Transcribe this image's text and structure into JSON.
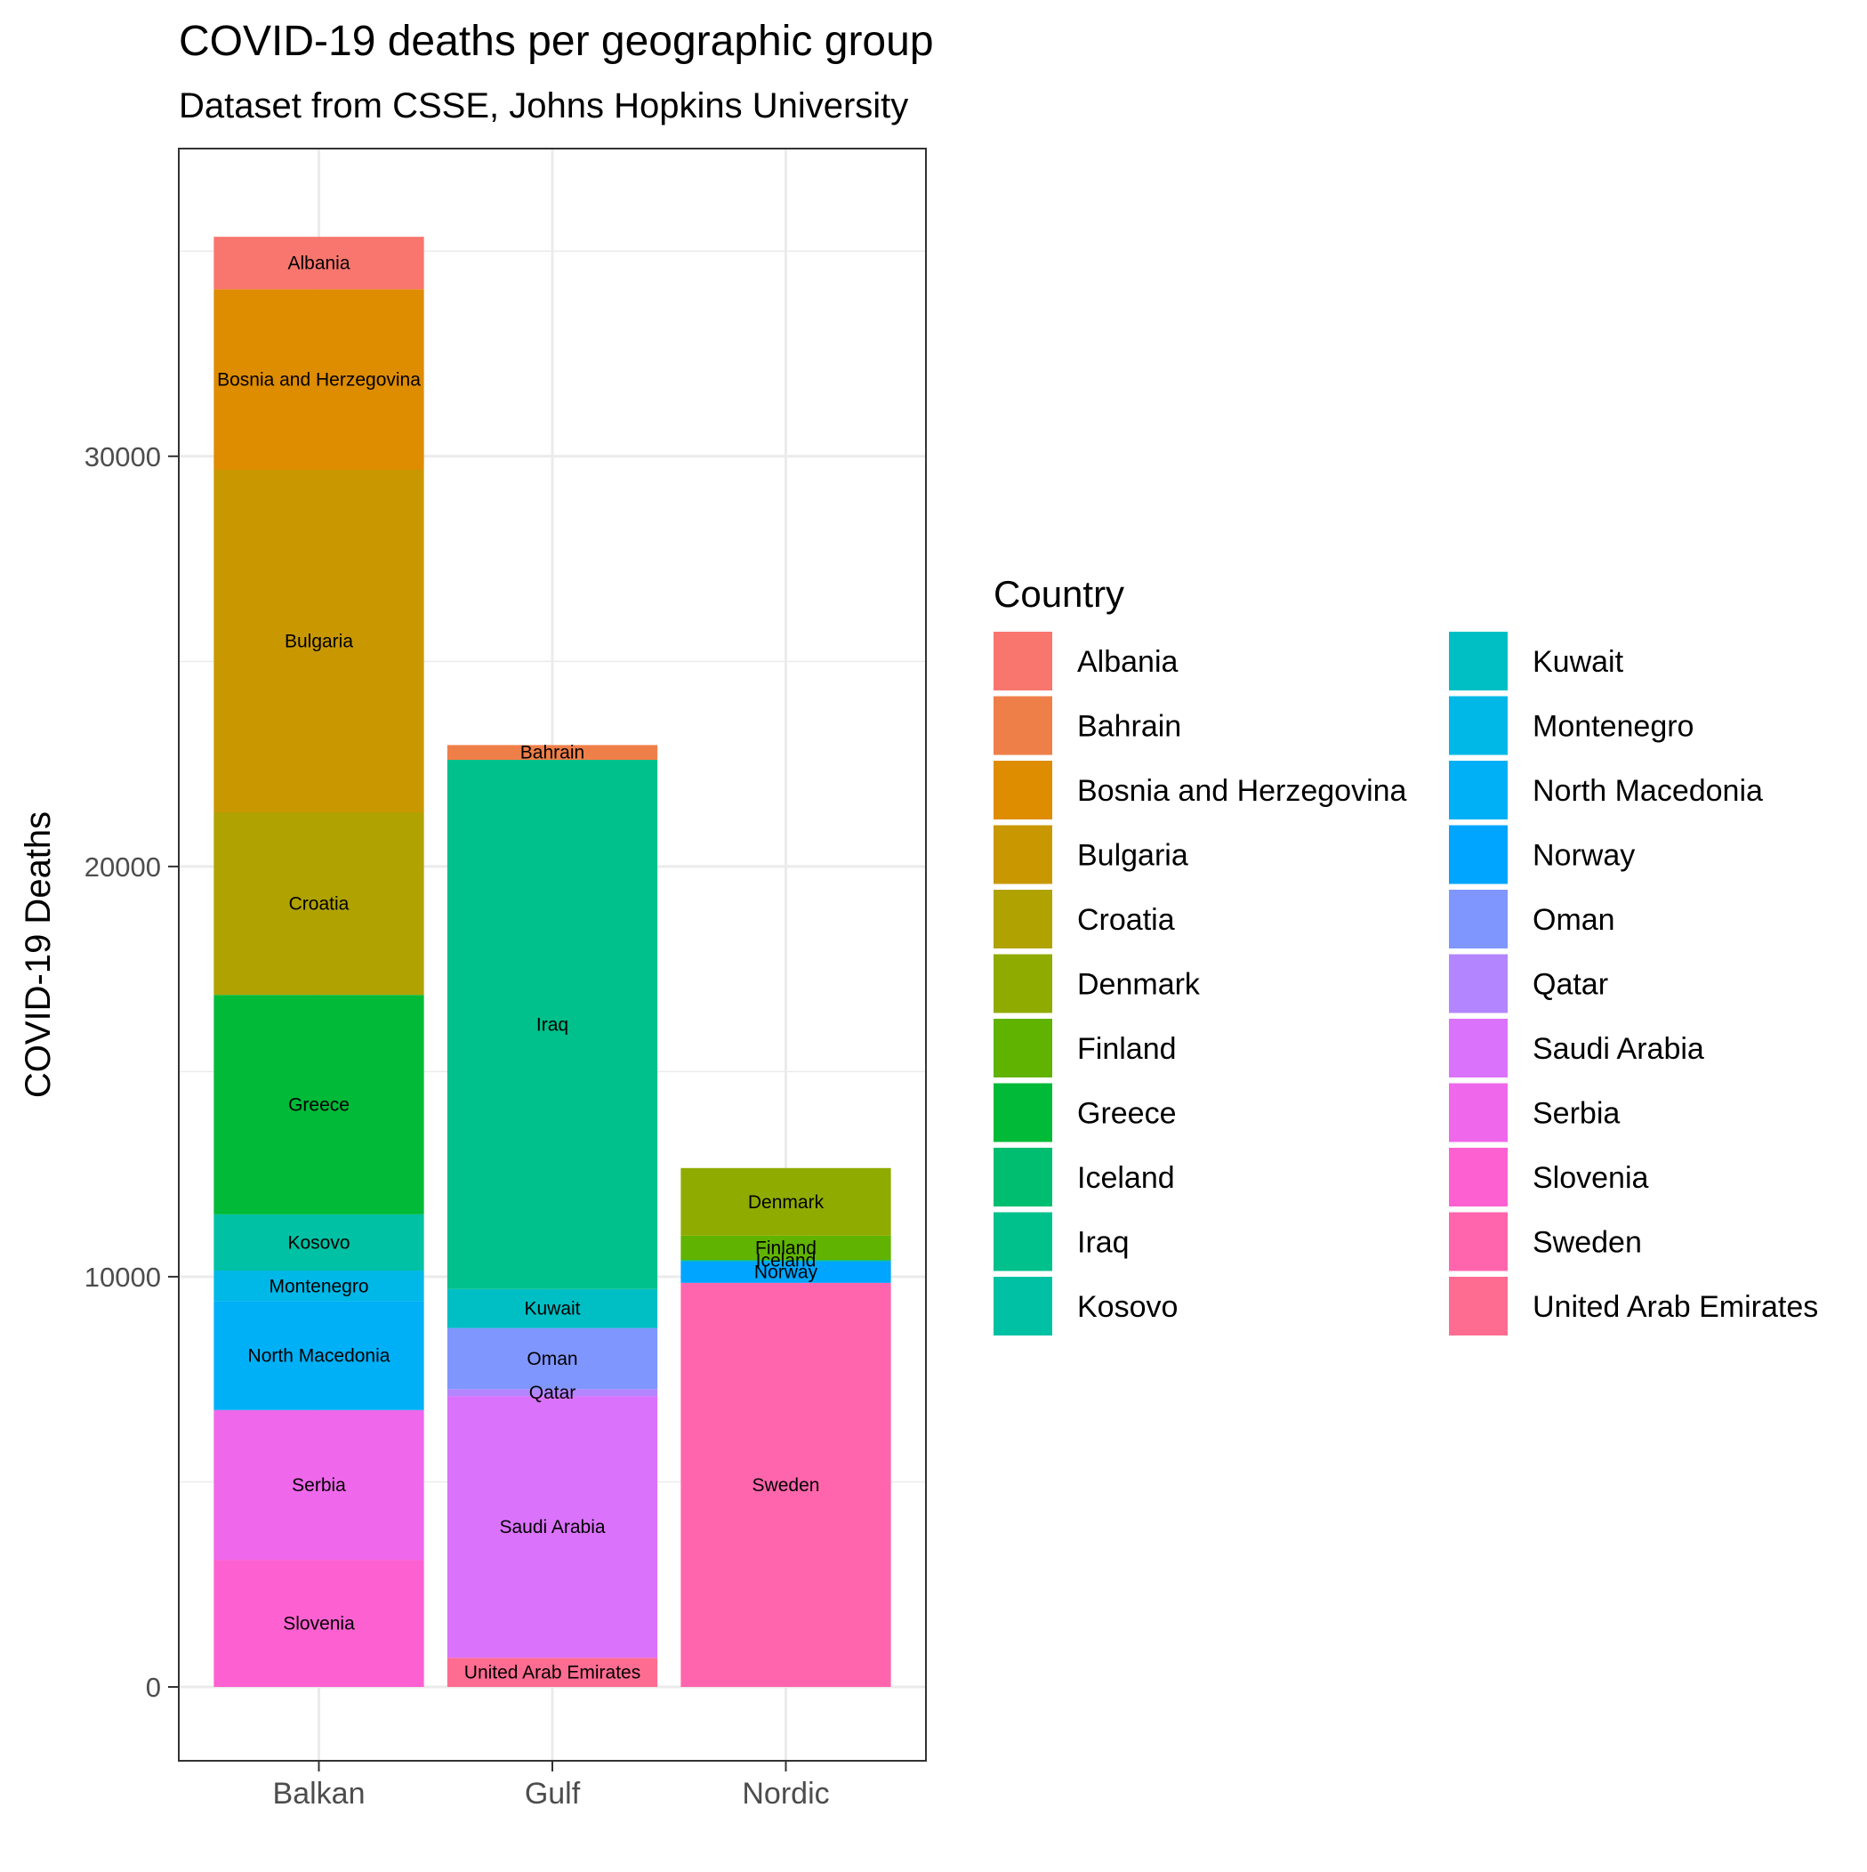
{
  "chart_data": {
    "type": "bar",
    "stacked": true,
    "title": "COVID-19 deaths per geographic group",
    "subtitle": "Dataset from CSSE, Johns Hopkins University",
    "xlabel": "",
    "ylabel": "COVID-19 Deaths",
    "ylim": [
      -1800,
      37500
    ],
    "yticks": [
      0,
      10000,
      20000,
      30000
    ],
    "ytick_labels": [
      "0",
      "10000",
      "20000",
      "30000"
    ],
    "grid": true,
    "legend": {
      "title": "Country",
      "position": "right",
      "columns": 2
    },
    "categories": [
      "Balkan",
      "Gulf",
      "Nordic"
    ],
    "countries": [
      {
        "name": "Albania",
        "color": "#F8766D"
      },
      {
        "name": "Bahrain",
        "color": "#EF7F49"
      },
      {
        "name": "Bosnia and Herzegovina",
        "color": "#DE8C00"
      },
      {
        "name": "Bulgaria",
        "color": "#C99800"
      },
      {
        "name": "Croatia",
        "color": "#B0A200"
      },
      {
        "name": "Denmark",
        "color": "#90AB00"
      },
      {
        "name": "Finland",
        "color": "#60B300"
      },
      {
        "name": "Greece",
        "color": "#00BA38"
      },
      {
        "name": "Iceland",
        "color": "#00BE70"
      },
      {
        "name": "Iraq",
        "color": "#00C08B"
      },
      {
        "name": "Kosovo",
        "color": "#00C1A3"
      },
      {
        "name": "Kuwait",
        "color": "#00BFC4"
      },
      {
        "name": "Montenegro",
        "color": "#00B8E7"
      },
      {
        "name": "North Macedonia",
        "color": "#00B0F6"
      },
      {
        "name": "Norway",
        "color": "#00A5FF"
      },
      {
        "name": "Oman",
        "color": "#7F96FF"
      },
      {
        "name": "Qatar",
        "color": "#B385FF"
      },
      {
        "name": "Saudi Arabia",
        "color": "#DB72FB"
      },
      {
        "name": "Serbia",
        "color": "#EF67EB"
      },
      {
        "name": "Slovenia",
        "color": "#FD61D1"
      },
      {
        "name": "Sweden",
        "color": "#FF65AC"
      },
      {
        "name": "United Arab Emirates",
        "color": "#FF6C91"
      }
    ],
    "stacks": [
      {
        "category": "Balkan",
        "segments": [
          {
            "country": "Slovenia",
            "value": 3100
          },
          {
            "country": "Serbia",
            "value": 3650
          },
          {
            "country": "North Macedonia",
            "value": 2650
          },
          {
            "country": "Montenegro",
            "value": 750
          },
          {
            "country": "Kosovo",
            "value": 1370
          },
          {
            "country": "Greece",
            "value": 5350
          },
          {
            "country": "Croatia",
            "value": 4450
          },
          {
            "country": "Bulgaria",
            "value": 8350
          },
          {
            "country": "Bosnia and Herzegovina",
            "value": 4400
          },
          {
            "country": "Albania",
            "value": 1280
          }
        ]
      },
      {
        "category": "Gulf",
        "segments": [
          {
            "country": "United Arab Emirates",
            "value": 710
          },
          {
            "country": "Saudi Arabia",
            "value": 6380
          },
          {
            "country": "Qatar",
            "value": 170
          },
          {
            "country": "Oman",
            "value": 1490
          },
          {
            "country": "Kuwait",
            "value": 950
          },
          {
            "country": "Iraq",
            "value": 12900
          },
          {
            "country": "Bahrain",
            "value": 360
          }
        ]
      },
      {
        "category": "Nordic",
        "segments": [
          {
            "country": "Sweden",
            "value": 9850
          },
          {
            "country": "Norway",
            "value": 530
          },
          {
            "country": "Iceland",
            "value": 29
          },
          {
            "country": "Finland",
            "value": 590
          },
          {
            "country": "Denmark",
            "value": 1650
          }
        ]
      }
    ]
  }
}
